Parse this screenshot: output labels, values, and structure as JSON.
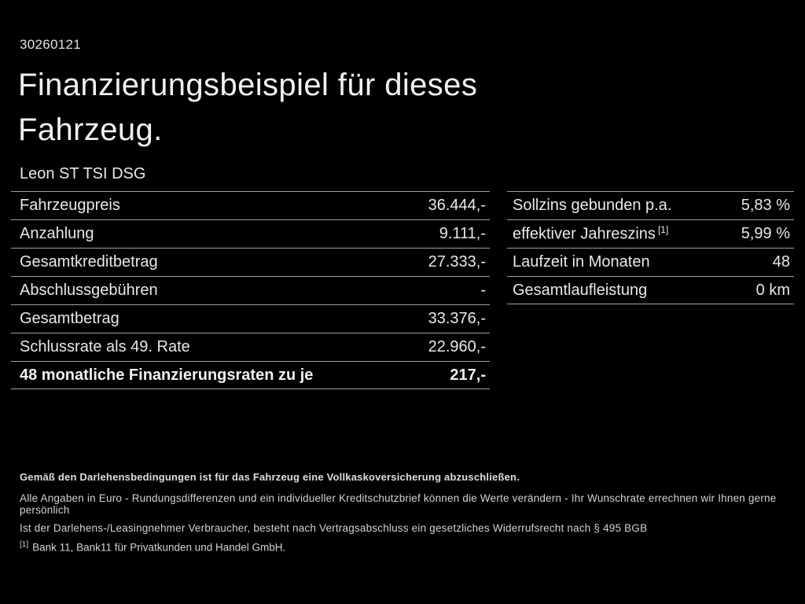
{
  "page": {
    "id_number": "30260121",
    "title_line1": "Finanzierungsbeispiel für dieses",
    "title_line2": "Fahrzeug.",
    "vehicle_model": "Leon ST TSI DSG"
  },
  "left_table": {
    "rows": [
      {
        "label": "Fahrzeugpreis",
        "value": "36.444,-"
      },
      {
        "label": "Anzahlung",
        "value": "9.111,-"
      },
      {
        "label": "Gesamtkreditbetrag",
        "value": "27.333,-"
      },
      {
        "label": "Abschlussgebühren",
        "value": "-"
      },
      {
        "label": "Gesamtbetrag",
        "value": "33.376,-"
      },
      {
        "label": "Schlussrate als 49. Rate",
        "value": "22.960,-"
      },
      {
        "label": "48 monatliche Finanzierungsraten zu je",
        "value": "217,-"
      }
    ]
  },
  "right_table": {
    "rows": [
      {
        "label": "Sollzins gebunden p.a.",
        "value": "5,83 %"
      },
      {
        "label": "effektiver Jahreszins",
        "label_sup": "[1]",
        "value": "5,99 %"
      },
      {
        "label": "Laufzeit in Monaten",
        "value": "48"
      },
      {
        "label": "Gesamtlaufleistung",
        "value": "0 km"
      }
    ]
  },
  "footer": {
    "bold_note": "Gemäß den Darlehensbedingungen ist für das Fahrzeug eine Vollkaskoversicherung abzuschließen.",
    "note_line1": "Alle Angaben in Euro - Rundungsdifferenzen und ein individueller Kreditschutzbrief können die Werte verändern - Ihr Wunschrate errechnen wir Ihnen gerne persönlich",
    "note_line2": "Ist der Darlehens-/Leasingnehmer Verbraucher, besteht nach Vertragsabschluss ein gesetzliches Widerrufsrecht nach § 495 BGB",
    "footnote_marker": "[1]",
    "footnote_text": "Bank 11, Bank11 für Privatkunden und Handel GmbH."
  },
  "colors": {
    "background": "#000000",
    "text": "#ededed",
    "divider": "#a0a0a0"
  }
}
